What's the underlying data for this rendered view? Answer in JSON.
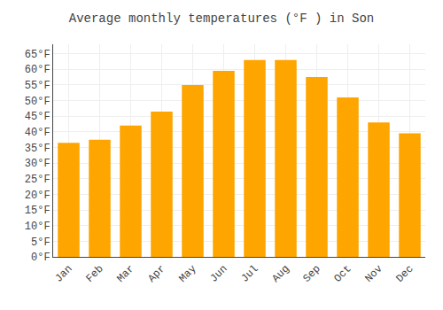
{
  "chart_data": {
    "type": "bar",
    "title": "Average monthly temperatures (°F ) in Son",
    "categories": [
      "Jan",
      "Feb",
      "Mar",
      "Apr",
      "May",
      "Jun",
      "Jul",
      "Aug",
      "Sep",
      "Oct",
      "Nov",
      "Dec"
    ],
    "values": [
      36.5,
      37.5,
      42.0,
      46.5,
      55.0,
      59.5,
      63.0,
      63.0,
      57.5,
      51.0,
      43.0,
      39.5
    ],
    "color": "#FFA500",
    "ylim": [
      0,
      68
    ],
    "yticks": [
      {
        "value": 0,
        "label": "0°F"
      },
      {
        "value": 5,
        "label": "5°F"
      },
      {
        "value": 10,
        "label": "10°F"
      },
      {
        "value": 15,
        "label": "15°F"
      },
      {
        "value": 20,
        "label": "20°F"
      },
      {
        "value": 25,
        "label": "25°F"
      },
      {
        "value": 30,
        "label": "30°F"
      },
      {
        "value": 35,
        "label": "35°F"
      },
      {
        "value": 40,
        "label": "40°F"
      },
      {
        "value": 45,
        "label": "45°F"
      },
      {
        "value": 50,
        "label": "50°F"
      },
      {
        "value": 55,
        "label": "55°F"
      },
      {
        "value": 60,
        "label": "60°F"
      },
      {
        "value": 65,
        "label": "65°F"
      }
    ],
    "grid": true
  }
}
